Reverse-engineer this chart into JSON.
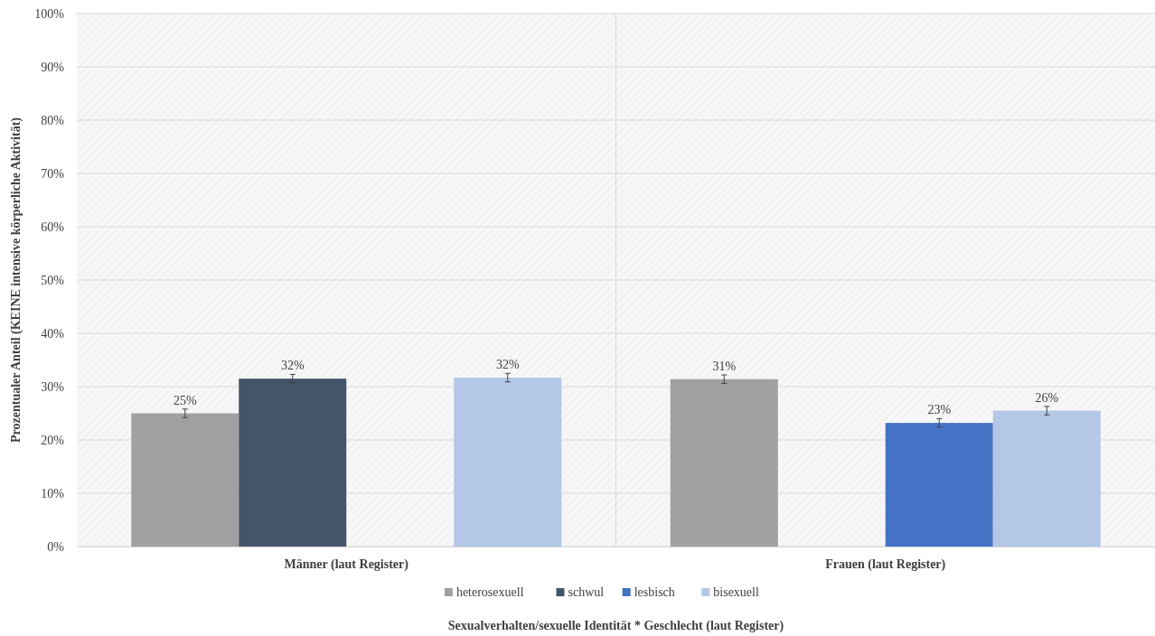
{
  "chart_data": {
    "type": "bar",
    "xlabel": "Sexualverhalten/sexuelle Identität * Geschlecht (laut Register)",
    "ylabel": "Prozentualer Anteil (KEINE intensive körperliche Aktivität)",
    "categories": [
      "Männer (laut Register)",
      "Frauen (laut Register)"
    ],
    "series": [
      {
        "name": "heterosexuell",
        "color": "#a0a0a0",
        "values": [
          25.0,
          31.4
        ],
        "errors": [
          0.8,
          0.8
        ],
        "value_labels": [
          "25%",
          "31%"
        ]
      },
      {
        "name": "schwul",
        "color": "#44546a",
        "values": [
          31.5,
          null
        ],
        "errors": [
          0.8,
          null
        ],
        "value_labels": [
          "32%",
          null
        ]
      },
      {
        "name": "lesbisch",
        "color": "#4472c4",
        "values": [
          null,
          23.2
        ],
        "errors": [
          null,
          0.8
        ],
        "value_labels": [
          null,
          "23%"
        ]
      },
      {
        "name": "bisexuell",
        "color": "#b4c7e7",
        "values": [
          31.7,
          25.5
        ],
        "errors": [
          0.8,
          0.8
        ],
        "value_labels": [
          "32%",
          "26%"
        ]
      }
    ],
    "ylim": [
      0,
      100
    ],
    "yticks": [
      {
        "value": 0,
        "label": "0%"
      },
      {
        "value": 10,
        "label": "10%"
      },
      {
        "value": 20,
        "label": "20%"
      },
      {
        "value": 30,
        "label": "30%"
      },
      {
        "value": 40,
        "label": "40%"
      },
      {
        "value": 50,
        "label": "50%"
      },
      {
        "value": 60,
        "label": "60%"
      },
      {
        "value": 70,
        "label": "70%"
      },
      {
        "value": 80,
        "label": "80%"
      },
      {
        "value": 90,
        "label": "90%"
      },
      {
        "value": 100,
        "label": "100%"
      }
    ],
    "grid": "y",
    "legend": "bottom"
  }
}
